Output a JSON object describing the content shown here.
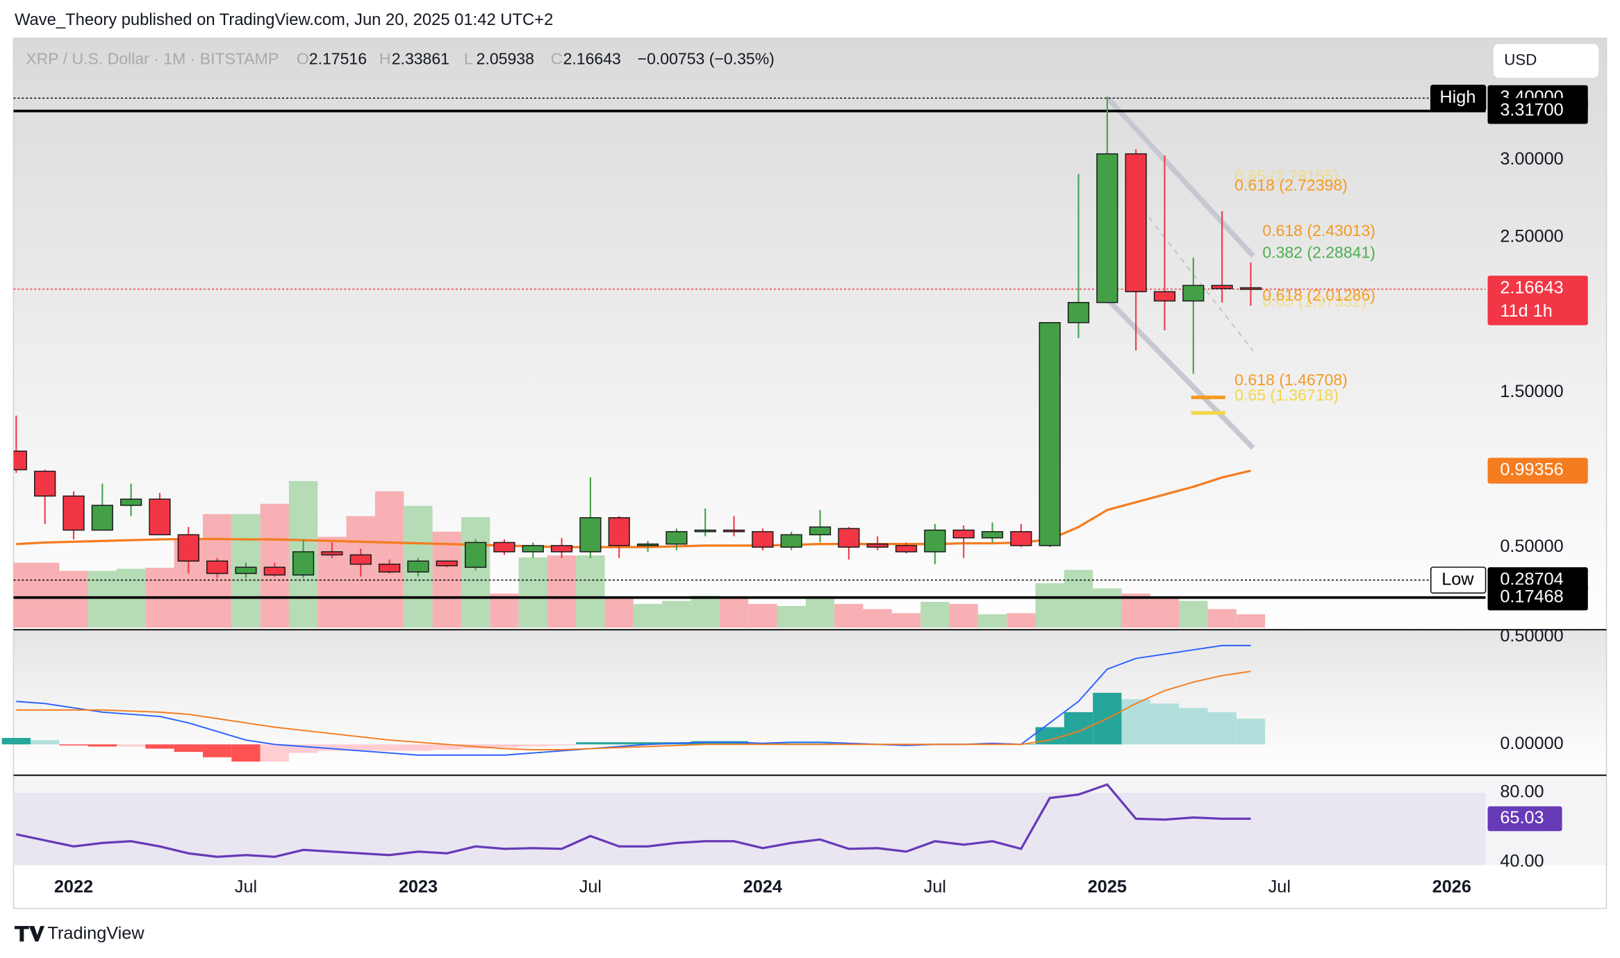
{
  "header": {
    "byline": "Wave_Theory published on TradingView.com, Jun 20, 2025 01:42 UTC+2",
    "currency": "USD",
    "logo": "TradingView"
  },
  "chart_data": {
    "type": "candlestick",
    "title": "XRP / U.S. Dollar · 1M · BITSTAMP",
    "ohlc": [
      {
        "label": "O",
        "value": 2.17516
      },
      {
        "label": "H",
        "value": 2.33861
      },
      {
        "label": "L",
        "value": 2.05938
      },
      {
        "label": "C",
        "value": 2.16643
      }
    ],
    "change": "−0.00753 (−0.35%)",
    "x": [
      "2021-11",
      "2021-12",
      "2022-01",
      "2022-02",
      "2022-03",
      "2022-04",
      "2022-05",
      "2022-06",
      "2022-07",
      "2022-08",
      "2022-09",
      "2022-10",
      "2022-11",
      "2022-12",
      "2023-01",
      "2023-02",
      "2023-03",
      "2023-04",
      "2023-05",
      "2023-06",
      "2023-07",
      "2023-08",
      "2023-09",
      "2023-10",
      "2023-11",
      "2023-12",
      "2024-01",
      "2024-02",
      "2024-03",
      "2024-04",
      "2024-05",
      "2024-06",
      "2024-07",
      "2024-08",
      "2024-09",
      "2024-10",
      "2024-11",
      "2024-12",
      "2025-01",
      "2025-02",
      "2025-03",
      "2025-04",
      "2025-05",
      "2025-06"
    ],
    "open": [
      1.12,
      0.99,
      0.83,
      0.61,
      0.77,
      0.81,
      0.58,
      0.41,
      0.33,
      0.37,
      0.32,
      0.47,
      0.45,
      0.39,
      0.34,
      0.41,
      0.37,
      0.53,
      0.47,
      0.51,
      0.47,
      0.69,
      0.51,
      0.52,
      0.6,
      0.61,
      0.6,
      0.5,
      0.58,
      0.62,
      0.52,
      0.51,
      0.47,
      0.61,
      0.56,
      0.6,
      0.51,
      1.95,
      2.08,
      3.04,
      2.15,
      2.09,
      2.19,
      2.17516
    ],
    "high": [
      1.35,
      1.0,
      0.86,
      0.91,
      0.91,
      0.85,
      0.63,
      0.43,
      0.4,
      0.4,
      0.55,
      0.53,
      0.49,
      0.42,
      0.43,
      0.41,
      0.55,
      0.55,
      0.53,
      0.56,
      0.95,
      0.7,
      0.54,
      0.62,
      0.75,
      0.7,
      0.62,
      0.6,
      0.74,
      0.63,
      0.57,
      0.53,
      0.65,
      0.64,
      0.66,
      0.65,
      1.95,
      2.91,
      3.41,
      3.07,
      3.03,
      2.37,
      2.67,
      2.33861
    ],
    "low": [
      0.98,
      0.65,
      0.55,
      0.61,
      0.7,
      0.58,
      0.33,
      0.3,
      0.3,
      0.31,
      0.3,
      0.43,
      0.31,
      0.33,
      0.31,
      0.37,
      0.35,
      0.45,
      0.43,
      0.43,
      0.43,
      0.43,
      0.47,
      0.48,
      0.57,
      0.57,
      0.48,
      0.48,
      0.53,
      0.42,
      0.48,
      0.46,
      0.39,
      0.43,
      0.53,
      0.5,
      0.5,
      1.85,
      2.08,
      1.77,
      1.9,
      1.62,
      2.08,
      2.05938
    ],
    "close": [
      1.0,
      0.83,
      0.61,
      0.77,
      0.81,
      0.58,
      0.41,
      0.33,
      0.37,
      0.32,
      0.47,
      0.45,
      0.39,
      0.34,
      0.41,
      0.38,
      0.53,
      0.47,
      0.51,
      0.47,
      0.69,
      0.51,
      0.52,
      0.6,
      0.61,
      0.6,
      0.5,
      0.58,
      0.63,
      0.5,
      0.5,
      0.47,
      0.61,
      0.56,
      0.6,
      0.51,
      1.95,
      2.08,
      3.04,
      2.15,
      2.09,
      2.19,
      2.17,
      2.16643
    ],
    "up_color": "#43a047",
    "down_color": "#f23645",
    "series": [
      {
        "color": "#f57c1f",
        "values": [
          0.52,
          0.53,
          0.535,
          0.54,
          0.545,
          0.55,
          0.553,
          0.553,
          0.55,
          0.55,
          0.545,
          0.54,
          0.535,
          0.53,
          0.525,
          0.52,
          0.515,
          0.51,
          0.505,
          0.5,
          0.5,
          0.5,
          0.5,
          0.505,
          0.51,
          0.51,
          0.51,
          0.515,
          0.52,
          0.52,
          0.52,
          0.52,
          0.52,
          0.525,
          0.525,
          0.53,
          0.55,
          0.63,
          0.74,
          0.79,
          0.84,
          0.89,
          0.95,
          0.99356
        ]
      }
    ],
    "volume": {
      "up_color": "#b5dcb5",
      "down_color": "#f7b0b3",
      "values": [
        63,
        63,
        55,
        55,
        57,
        58,
        85,
        110,
        110,
        120,
        142,
        88,
        108,
        132,
        118,
        93,
        107,
        33,
        68,
        70,
        70,
        28,
        23,
        26,
        31,
        28,
        23,
        21,
        30,
        23,
        18,
        14,
        25,
        23,
        13,
        14,
        43,
        56,
        38,
        33,
        30,
        26,
        18,
        13
      ]
    },
    "xlim": [
      "2021-11",
      "2026-02"
    ],
    "xticks": [
      {
        "value": "2022-01",
        "label": "2022"
      },
      {
        "value": "2022-07",
        "label": "Jul"
      },
      {
        "value": "2023-01",
        "label": "2023"
      },
      {
        "value": "2023-07",
        "label": "Jul"
      },
      {
        "value": "2024-01",
        "label": "2024"
      },
      {
        "value": "2024-07",
        "label": "Jul"
      },
      {
        "value": "2025-01",
        "label": "2025"
      },
      {
        "value": "2025-07",
        "label": "Jul"
      },
      {
        "value": "2026-01",
        "label": "2026"
      }
    ],
    "ylim": [
      -0.02,
      3.787
    ],
    "yticks": [
      {
        "value": 3,
        "label": "3.00000"
      },
      {
        "value": 2.5,
        "label": "2.50000"
      },
      {
        "value": 1.5,
        "label": "1.50000"
      },
      {
        "value": 0.5,
        "label": "0.50000"
      }
    ],
    "price_labels": [
      {
        "value": 3.4,
        "label": "3.40000",
        "tag": "High",
        "color": "#000000",
        "line": "dotted"
      },
      {
        "value": 3.317,
        "label": "3.31700",
        "color": "#000000",
        "line": "solid"
      },
      {
        "value": 2.16643,
        "label": "2.16643",
        "sub": "11d 1h",
        "color": "#f23645",
        "line": "dotted"
      },
      {
        "value": 0.99356,
        "label": "0.99356",
        "color": "#f57c1f"
      },
      {
        "value": 0.28704,
        "label": "0.28704",
        "tag": "Low",
        "color": "#000000",
        "line": "dotted"
      },
      {
        "value": 0.17468,
        "label": "0.17468",
        "color": "#000000",
        "line": "solid"
      }
    ],
    "fib": [
      {
        "label": "0.65 (2.78155)",
        "value": 2.78155,
        "color": "#f5d547",
        "faded": true
      },
      {
        "label": "0.618 (2.72398)",
        "value": 2.72398,
        "color": "#f59a23"
      },
      {
        "label": "0.618 (2.43013)",
        "value": 2.43013,
        "color": "#f59a23"
      },
      {
        "label": "0.382 (2.28841)",
        "value": 2.28841,
        "color": "#4caf50"
      },
      {
        "label": "0.618 (2.01286)",
        "value": 2.01286,
        "color": "#f59a23"
      },
      {
        "label": "0.65 (1.97332)",
        "value": 1.97332,
        "color": "#f5d547",
        "faded": true
      },
      {
        "label": "0.618 (1.46708)",
        "value": 1.46708,
        "color": "#f59a23",
        "line": true
      },
      {
        "label": "0.65 (1.36718)",
        "value": 1.36718,
        "color": "#f5d547",
        "line": true
      }
    ],
    "macd": {
      "ylim": [
        -0.139,
        0.524
      ],
      "yticks": [
        {
          "value": 0.5,
          "label": "0.50000"
        },
        {
          "value": 0,
          "label": "0.00000"
        }
      ],
      "histogram": [
        0.03,
        0.02,
        -0.005,
        -0.01,
        -0.01,
        -0.02,
        -0.035,
        -0.06,
        -0.08,
        -0.08,
        -0.04,
        -0.03,
        -0.03,
        -0.03,
        -0.03,
        -0.025,
        -0.02,
        -0.015,
        -0.01,
        -0.005,
        0.01,
        0.01,
        0.01,
        0.01,
        0.015,
        0.015,
        0.005,
        0.005,
        0.005,
        0,
        0,
        0,
        0.002,
        0.002,
        0.002,
        0.002,
        0.08,
        0.15,
        0.24,
        0.21,
        0.19,
        0.17,
        0.15,
        0.12
      ],
      "series": [
        {
          "color": "#2962ff",
          "values": [
            0.2,
            0.19,
            0.17,
            0.15,
            0.14,
            0.13,
            0.1,
            0.06,
            0.02,
            0,
            -0.01,
            -0.02,
            -0.03,
            -0.04,
            -0.05,
            -0.05,
            -0.05,
            -0.05,
            -0.04,
            -0.03,
            -0.02,
            -0.01,
            0,
            0.005,
            0.01,
            0.01,
            0.005,
            0.01,
            0.01,
            0.005,
            0,
            -0.005,
            0,
            0,
            0.005,
            0,
            0.1,
            0.2,
            0.35,
            0.4,
            0.42,
            0.44,
            0.46,
            0.46
          ]
        },
        {
          "color": "#f57c1f",
          "values": [
            0.16,
            0.16,
            0.16,
            0.16,
            0.155,
            0.15,
            0.14,
            0.12,
            0.1,
            0.08,
            0.065,
            0.05,
            0.035,
            0.02,
            0.01,
            0,
            -0.01,
            -0.02,
            -0.025,
            -0.025,
            -0.02,
            -0.015,
            -0.01,
            -0.005,
            0,
            0,
            0,
            0,
            0,
            0,
            0,
            0,
            0,
            0,
            0,
            0,
            0.02,
            0.06,
            0.12,
            0.19,
            0.25,
            0.29,
            0.32,
            0.34
          ]
        }
      ]
    },
    "rsi": {
      "ylim": [
        38.2,
        89.55
      ],
      "yticks": [
        {
          "value": 80,
          "label": "80.00"
        },
        {
          "value": 40,
          "label": "40.00"
        }
      ],
      "color": "#673ab7",
      "value_label": "65.03",
      "values": [
        56,
        52.5,
        49,
        51,
        52,
        49,
        45,
        43,
        44,
        43,
        47,
        46,
        45,
        44,
        46,
        45,
        49,
        47.6,
        48,
        47.6,
        55,
        49,
        49,
        51,
        52,
        52,
        48,
        51,
        53,
        47.6,
        48,
        46,
        52,
        50,
        52,
        47.6,
        77,
        79,
        84.8,
        65,
        64.5,
        65.7,
        65,
        65.03
      ]
    }
  }
}
